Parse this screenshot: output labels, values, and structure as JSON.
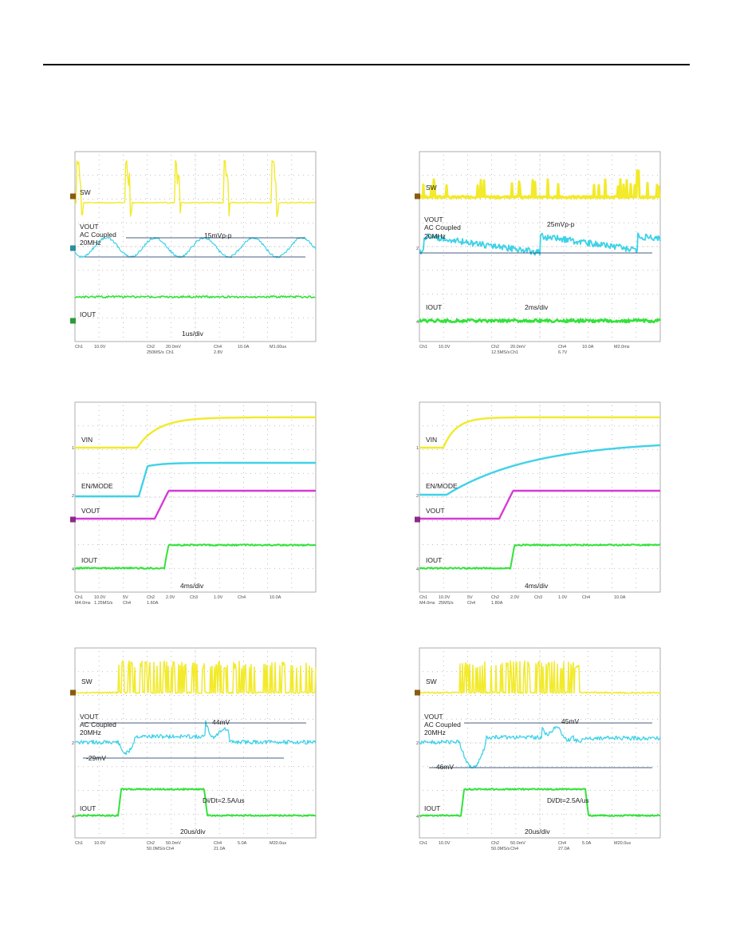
{
  "panels": [
    {
      "id": "p1",
      "labels": [
        "SW",
        "VOUT",
        "AC Coupled",
        "20MHz",
        "15mVp-p",
        "IOUT",
        "1us/div"
      ],
      "footer": [
        "Ch1",
        "10.0V",
        "Ch2",
        "20.0mV",
        "Ch4",
        "10.0A",
        "M1.00us",
        "250MS/s",
        "Ch1",
        "2.8V"
      ],
      "colors": {
        "sw": "#f2ea2a",
        "vout": "#3fd2e8",
        "iout": "#33e23a"
      }
    },
    {
      "id": "p2",
      "labels": [
        "SW",
        "VOUT",
        "AC Coupled",
        "20MHz",
        "25mVp-p",
        "IOUT",
        "2ms/div"
      ],
      "footer": [
        "Ch1",
        "10.0V",
        "Ch2",
        "20.0mV",
        "Ch4",
        "10.0A",
        "M2.0ms",
        "12.5MS/s",
        "Ch1",
        "6.7V"
      ],
      "colors": {
        "sw": "#f2ea2a",
        "vout": "#3fd2e8",
        "iout": "#33e23a"
      }
    },
    {
      "id": "p3",
      "labels": [
        "VIN",
        "EN/MODE",
        "VOUT",
        "IOUT",
        "4ms/div"
      ],
      "footer": [
        "Ch1",
        "10.0V",
        "5V",
        "Ch2",
        "2.0V",
        "Ch3",
        "1.0V",
        "Ch4",
        "10.0A",
        "M4.0ms",
        "1.25MS/s",
        "Ch4",
        "1.60A"
      ],
      "colors": {
        "vin": "#f2ea2a",
        "en": "#3fd2e8",
        "vout": "#d63ad6",
        "iout": "#33e23a"
      }
    },
    {
      "id": "p4",
      "labels": [
        "VIN",
        "EN/MODE",
        "VOUT",
        "IOUT",
        "4ms/div"
      ],
      "footer": [
        "Ch1",
        "10.0V",
        "5V",
        "Ch2",
        "2.0V",
        "Ch3",
        "1.0V",
        "Ch4",
        "10.0A",
        "M4.0ms",
        "25MS/s",
        "Ch4",
        "1.80A"
      ],
      "colors": {
        "vin": "#f2ea2a",
        "en": "#3fd2e8",
        "vout": "#d63ad6",
        "iout": "#33e23a"
      }
    },
    {
      "id": "p5",
      "labels": [
        "SW",
        "VOUT",
        "AC Coupled",
        "20MHz",
        "44mV",
        "-29mV",
        "IOUT",
        "Di/Dt=2.5A/us",
        "20us/div"
      ],
      "footer": [
        "Ch1",
        "10.0V",
        "Ch2",
        "50.0mV",
        "Ch4",
        "5.0A",
        "M20.0us",
        "50.0MS/s",
        "Ch4",
        "21.0A"
      ],
      "colors": {
        "sw": "#f2ea2a",
        "vout": "#3fd2e8",
        "iout": "#33e23a"
      }
    },
    {
      "id": "p6",
      "labels": [
        "SW",
        "VOUT",
        "AC Coupled",
        "20MHz",
        "45mV",
        "-46mV",
        "IOUT",
        "Di/Dt=2.5A/us",
        "20us/div"
      ],
      "footer": [
        "Ch1",
        "10.0V",
        "Ch2",
        "50.0mV",
        "Ch4",
        "5.0A",
        "M20.0us",
        "50.0MS/s",
        "Ch4",
        "27.0A"
      ],
      "colors": {
        "sw": "#f2ea2a",
        "vout": "#3fd2e8",
        "iout": "#33e23a"
      }
    }
  ]
}
